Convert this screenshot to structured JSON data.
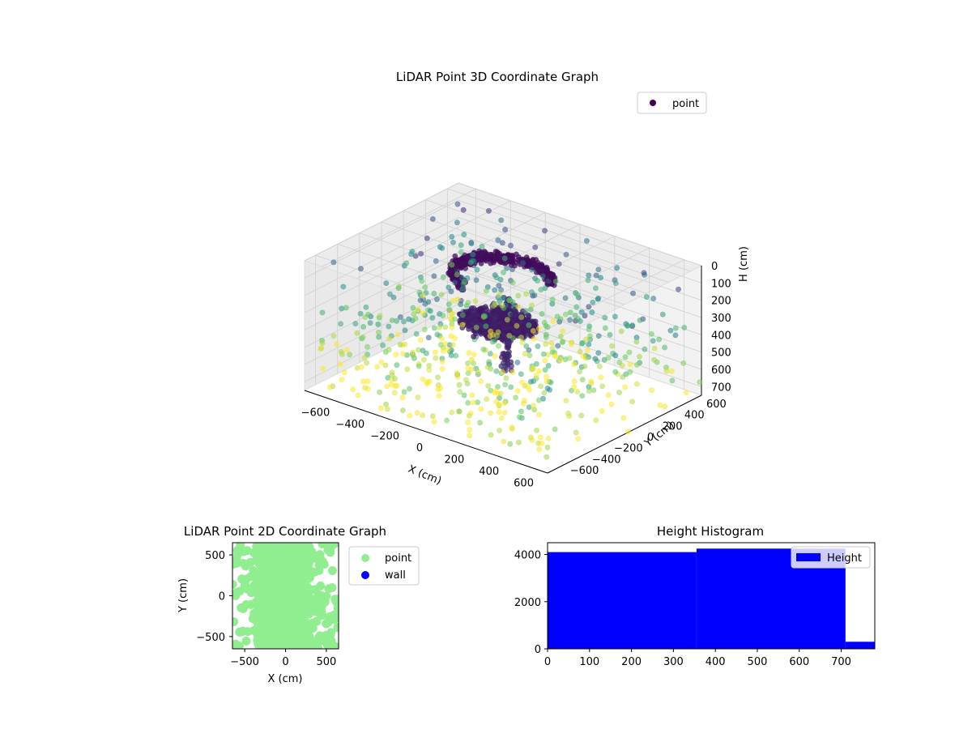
{
  "chart_data": [
    {
      "type": "scatter",
      "projection": "3d",
      "title": "LiDAR Point 3D Coordinate Graph",
      "xlabel": "X (cm)",
      "ylabel": "Y (cm)",
      "zlabel": "H (cm)",
      "xticks": [
        "−600",
        "−400",
        "−200",
        "0",
        "200",
        "400",
        "600"
      ],
      "yticks": [
        "−600",
        "−400",
        "−200",
        "0",
        "200",
        "400",
        "600"
      ],
      "zticks": [
        "0",
        "100",
        "200",
        "300",
        "400",
        "500",
        "600",
        "700"
      ],
      "xlim": [
        -700,
        700
      ],
      "ylim": [
        -700,
        700
      ],
      "zlim": [
        0,
        750
      ],
      "z_axis_inverted": true,
      "colormap": "viridis",
      "grid": true,
      "legend": {
        "placement": "top-right",
        "entries": [
          {
            "name": "point",
            "color": "#440154"
          }
        ]
      },
      "structures": [
        {
          "name": "point",
          "shape": "dense ring (upper)",
          "center": [
            -100,
            150
          ],
          "radius": 240,
          "h": 160
        },
        {
          "name": "point",
          "shape": "dense disc (lower)",
          "center": [
            -80,
            80
          ],
          "radius": 190,
          "h": 400
        }
      ]
    },
    {
      "type": "scatter",
      "title": "LiDAR Point 2D Coordinate Graph",
      "xlabel": "X (cm)",
      "ylabel": "Y (cm)",
      "xticks": [
        "−500",
        "0",
        "500"
      ],
      "yticks": [
        "−500",
        "0",
        "500"
      ],
      "xlim": [
        -650,
        650
      ],
      "ylim": [
        -650,
        650
      ],
      "legend": {
        "placement": "outside-right",
        "entries": [
          {
            "name": "point",
            "color": "#90ee90"
          },
          {
            "name": "wall",
            "color": "#0000ff"
          }
        ]
      },
      "series": [
        {
          "name": "point",
          "color": "#90ee90",
          "region": "dense central band, x from -350 to 300 cm, plus scattered clusters across the whole square"
        },
        {
          "name": "wall",
          "color": "#0000ff",
          "points": []
        }
      ]
    },
    {
      "type": "bar",
      "title": "Height Histogram",
      "xlabel": "",
      "ylabel": "",
      "xticks": [
        "0",
        "100",
        "200",
        "300",
        "400",
        "500",
        "600",
        "700"
      ],
      "yticks": [
        "0",
        "2000",
        "4000"
      ],
      "xlim": [
        0,
        780
      ],
      "ylim": [
        0,
        4500
      ],
      "bin_edges": [
        0,
        355,
        710,
        780
      ],
      "values": [
        4100,
        4250,
        300
      ],
      "color": "#0000ff",
      "legend": {
        "placement": "top-right",
        "entries": [
          {
            "name": "Height",
            "color": "#0000ff"
          }
        ]
      }
    }
  ]
}
